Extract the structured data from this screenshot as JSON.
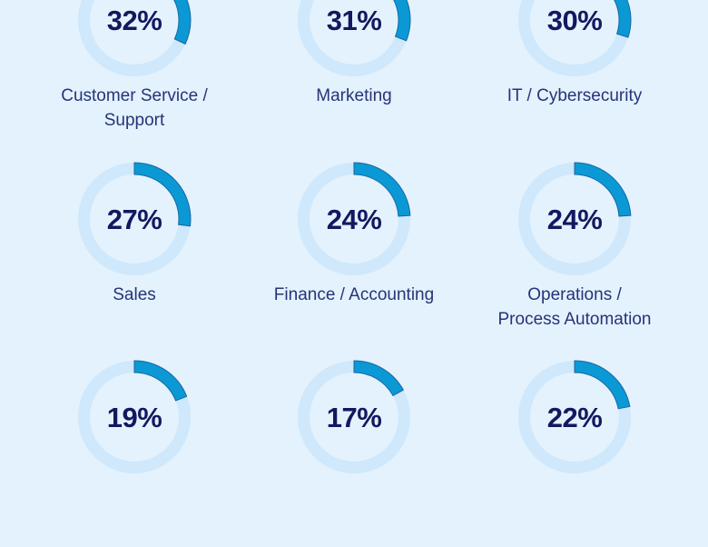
{
  "colors": {
    "background": "#e3f2fd",
    "track": "#cfe8fb",
    "arc_fill": "#0a99d4",
    "arc_stroke": "#1b66a3",
    "percent_text": "#15175f",
    "label_text": "#283378"
  },
  "chart_data": {
    "type": "donut-grid",
    "title": "",
    "value_unit": "%",
    "layout": {
      "columns": 3,
      "rows_visible": 3,
      "arc_start": "top",
      "direction": "clockwise"
    },
    "items": [
      {
        "label": "Customer Service /\nSupport",
        "value": 32,
        "display": "32%"
      },
      {
        "label": "Marketing",
        "value": 31,
        "display": "31%"
      },
      {
        "label": "IT / Cybersecurity",
        "value": 30,
        "display": "30%"
      },
      {
        "label": "Sales",
        "value": 27,
        "display": "27%"
      },
      {
        "label": "Finance / Accounting",
        "value": 24,
        "display": "24%"
      },
      {
        "label": "Operations /\nProcess Automation",
        "value": 24,
        "display": "24%"
      },
      {
        "label": "",
        "value": 19,
        "display": "19%"
      },
      {
        "label": "",
        "value": 17,
        "display": "17%"
      },
      {
        "label": "",
        "value": 22,
        "display": "22%"
      }
    ]
  }
}
